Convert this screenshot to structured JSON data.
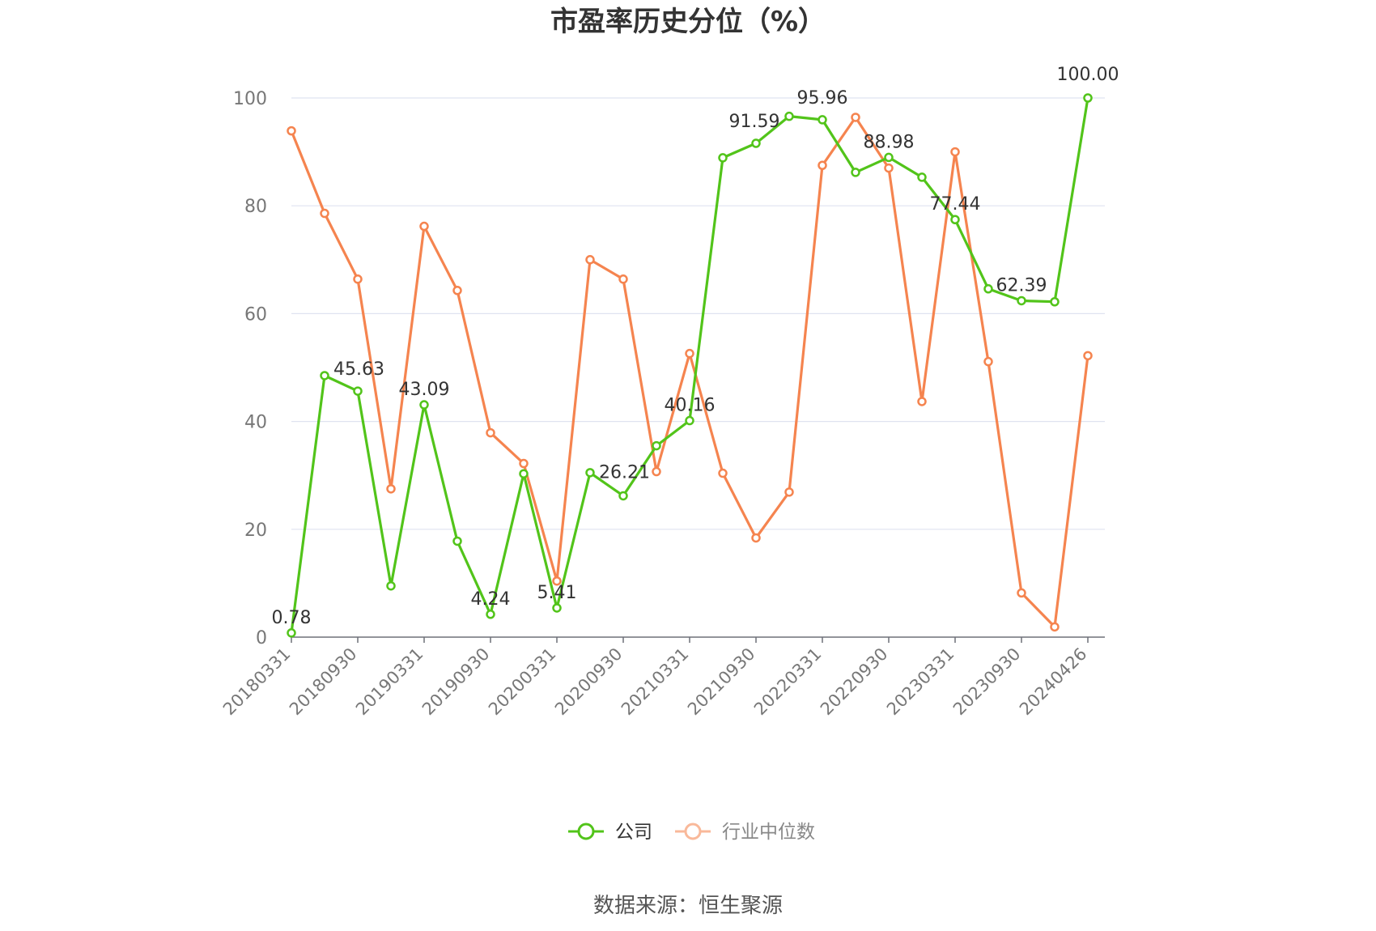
{
  "chart_data": {
    "type": "line",
    "title": "市盈率历史分位（%）",
    "ylim": [
      0,
      100
    ],
    "yticks": [
      0,
      20,
      40,
      60,
      80,
      100
    ],
    "x_tick_labels": [
      "20180331",
      "20180930",
      "20190331",
      "20190930",
      "20200331",
      "20200930",
      "20210331",
      "20210930",
      "20220331",
      "20220930",
      "20230331",
      "20230930",
      "20240426"
    ],
    "grid": true,
    "legend_position": "bottom",
    "series": [
      {
        "name": "公司",
        "color": "#52c41a",
        "values": [
          0.78,
          48.5,
          45.63,
          9.5,
          43.09,
          17.8,
          4.24,
          30.3,
          5.41,
          30.5,
          26.21,
          35.5,
          40.16,
          88.9,
          91.59,
          96.6,
          95.96,
          86.2,
          88.98,
          85.3,
          77.44,
          64.6,
          62.39,
          62.2,
          100.0
        ],
        "labels": {
          "0": "0.78",
          "2": "45.63",
          "4": "43.09",
          "6": "4.24",
          "8": "5.41",
          "10": "26.21",
          "12": "40.16",
          "14": "91.59",
          "16": "95.96",
          "18": "88.98",
          "20": "77.44",
          "22": "62.39",
          "24": "100.00"
        }
      },
      {
        "name": "行业中位数",
        "color": "#f5844f",
        "values": [
          93.9,
          78.6,
          66.4,
          27.5,
          76.2,
          64.3,
          37.9,
          32.2,
          10.4,
          70.0,
          66.4,
          30.7,
          52.6,
          30.4,
          18.4,
          26.9,
          87.5,
          96.4,
          87.0,
          43.7,
          90.0,
          51.1,
          8.2,
          1.9,
          52.2
        ]
      }
    ]
  },
  "legend": {
    "company": "公司",
    "industry": "行业中位数"
  },
  "source": "数据来源：恒生聚源"
}
